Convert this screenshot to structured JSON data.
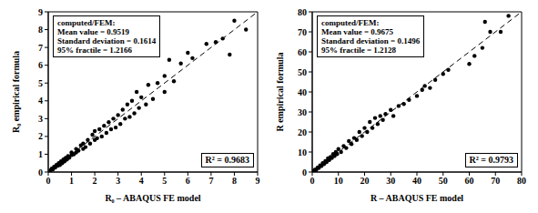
{
  "chart_data": [
    {
      "type": "scatter",
      "xlabel": "R₀ – ABAQUS FE model",
      "ylabel": "R₀ empirical formula",
      "annotations": [
        "computed/FEM:",
        "Mean value = 0.9519",
        "Standard deviation = 0.1614",
        "95% fractile = 1.2166"
      ],
      "r2_label": "R² = 0.9683",
      "xlim": [
        0,
        9
      ],
      "xticks": [
        0,
        1,
        2,
        3,
        4,
        5,
        6,
        7,
        8,
        9
      ],
      "ylim": [
        0,
        9
      ],
      "yticks": [
        0,
        1,
        2,
        3,
        4,
        5,
        6,
        7,
        8,
        9
      ],
      "grid": false,
      "series": [
        {
          "type": "scatter",
          "color": "#000000",
          "marker": "circle",
          "x": [
            0.1,
            0.15,
            0.2,
            0.25,
            0.3,
            0.35,
            0.4,
            0.45,
            0.5,
            0.55,
            0.6,
            0.65,
            0.7,
            0.75,
            0.8,
            0.85,
            0.9,
            1.0,
            1.0,
            1.1,
            1.2,
            1.2,
            1.3,
            1.4,
            1.5,
            1.5,
            1.6,
            1.7,
            1.8,
            1.9,
            2.0,
            2.0,
            2.1,
            2.2,
            2.3,
            2.4,
            2.5,
            2.6,
            2.7,
            2.8,
            2.9,
            3.0,
            3.1,
            3.2,
            3.3,
            3.4,
            3.5,
            3.6,
            3.7,
            3.8,
            3.9,
            4.0,
            4.2,
            4.3,
            4.5,
            4.7,
            5.0,
            5.0,
            5.2,
            5.4,
            5.7,
            6.0,
            6.2,
            6.8,
            7.2,
            7.5,
            7.8,
            8.0,
            8.5
          ],
          "values": [
            0.1,
            0.2,
            0.15,
            0.3,
            0.25,
            0.4,
            0.35,
            0.5,
            0.4,
            0.6,
            0.5,
            0.7,
            0.6,
            0.8,
            0.7,
            0.9,
            0.8,
            0.95,
            1.1,
            1.0,
            1.3,
            1.1,
            1.2,
            1.5,
            1.3,
            1.6,
            1.4,
            1.8,
            1.6,
            2.1,
            1.8,
            2.3,
            1.9,
            2.4,
            2.0,
            2.6,
            2.2,
            2.8,
            2.4,
            3.0,
            2.5,
            3.2,
            2.7,
            3.5,
            3.0,
            3.8,
            3.1,
            4.0,
            3.3,
            4.5,
            3.6,
            4.2,
            3.8,
            4.9,
            4.1,
            5.0,
            4.5,
            5.4,
            6.3,
            5.1,
            6.1,
            6.7,
            6.4,
            7.2,
            7.3,
            7.5,
            6.6,
            8.5,
            8.0
          ]
        },
        {
          "type": "line",
          "line_style": "dashed",
          "color": "#000000",
          "x": [
            0,
            9
          ],
          "values": [
            0,
            9
          ]
        }
      ]
    },
    {
      "type": "scatter",
      "xlabel": "R – ABAQUS FE model",
      "ylabel": "R empirical formula",
      "annotations": [
        "computed/FEM:",
        "Mean value = 0.9675",
        "Standard deviation = 0.1496",
        "95% fractile = 1.2128"
      ],
      "r2_label": "R² = 0.9793",
      "xlim": [
        0,
        80
      ],
      "xticks": [
        0,
        10,
        20,
        30,
        40,
        50,
        60,
        70,
        80
      ],
      "ylim": [
        0,
        80
      ],
      "yticks": [
        0,
        10,
        20,
        30,
        40,
        50,
        60,
        70,
        80
      ],
      "grid": false,
      "series": [
        {
          "type": "scatter",
          "color": "#000000",
          "marker": "circle",
          "x": [
            0.5,
            1,
            1.5,
            2,
            2.5,
            3,
            3.5,
            4,
            4.5,
            5,
            5.5,
            6,
            6.5,
            7,
            7.5,
            8,
            8.5,
            9,
            9.5,
            10,
            11,
            12,
            13,
            14,
            15,
            16,
            17,
            18,
            19,
            20,
            21,
            22,
            23,
            24,
            25,
            26,
            27,
            28,
            30,
            31,
            33,
            35,
            37,
            40,
            42,
            43,
            45,
            47,
            50,
            52,
            60,
            62,
            65,
            66,
            68,
            72,
            75
          ],
          "values": [
            0.4,
            1.2,
            1,
            2.2,
            2,
            3.3,
            3,
            4.5,
            4,
            5.5,
            5,
            6.8,
            6,
            7.5,
            7,
            9,
            8,
            10,
            9,
            11.5,
            10,
            13,
            12,
            15.5,
            14,
            17,
            16,
            20,
            18,
            22,
            20,
            25,
            22,
            27,
            24,
            28,
            26,
            29,
            31,
            28,
            33,
            34,
            36,
            38,
            41,
            43,
            42,
            46,
            49,
            51,
            54,
            58,
            62,
            75,
            70,
            70,
            78
          ]
        },
        {
          "type": "line",
          "line_style": "dashed",
          "color": "#000000",
          "x": [
            0,
            80
          ],
          "values": [
            0,
            80
          ]
        }
      ]
    }
  ]
}
